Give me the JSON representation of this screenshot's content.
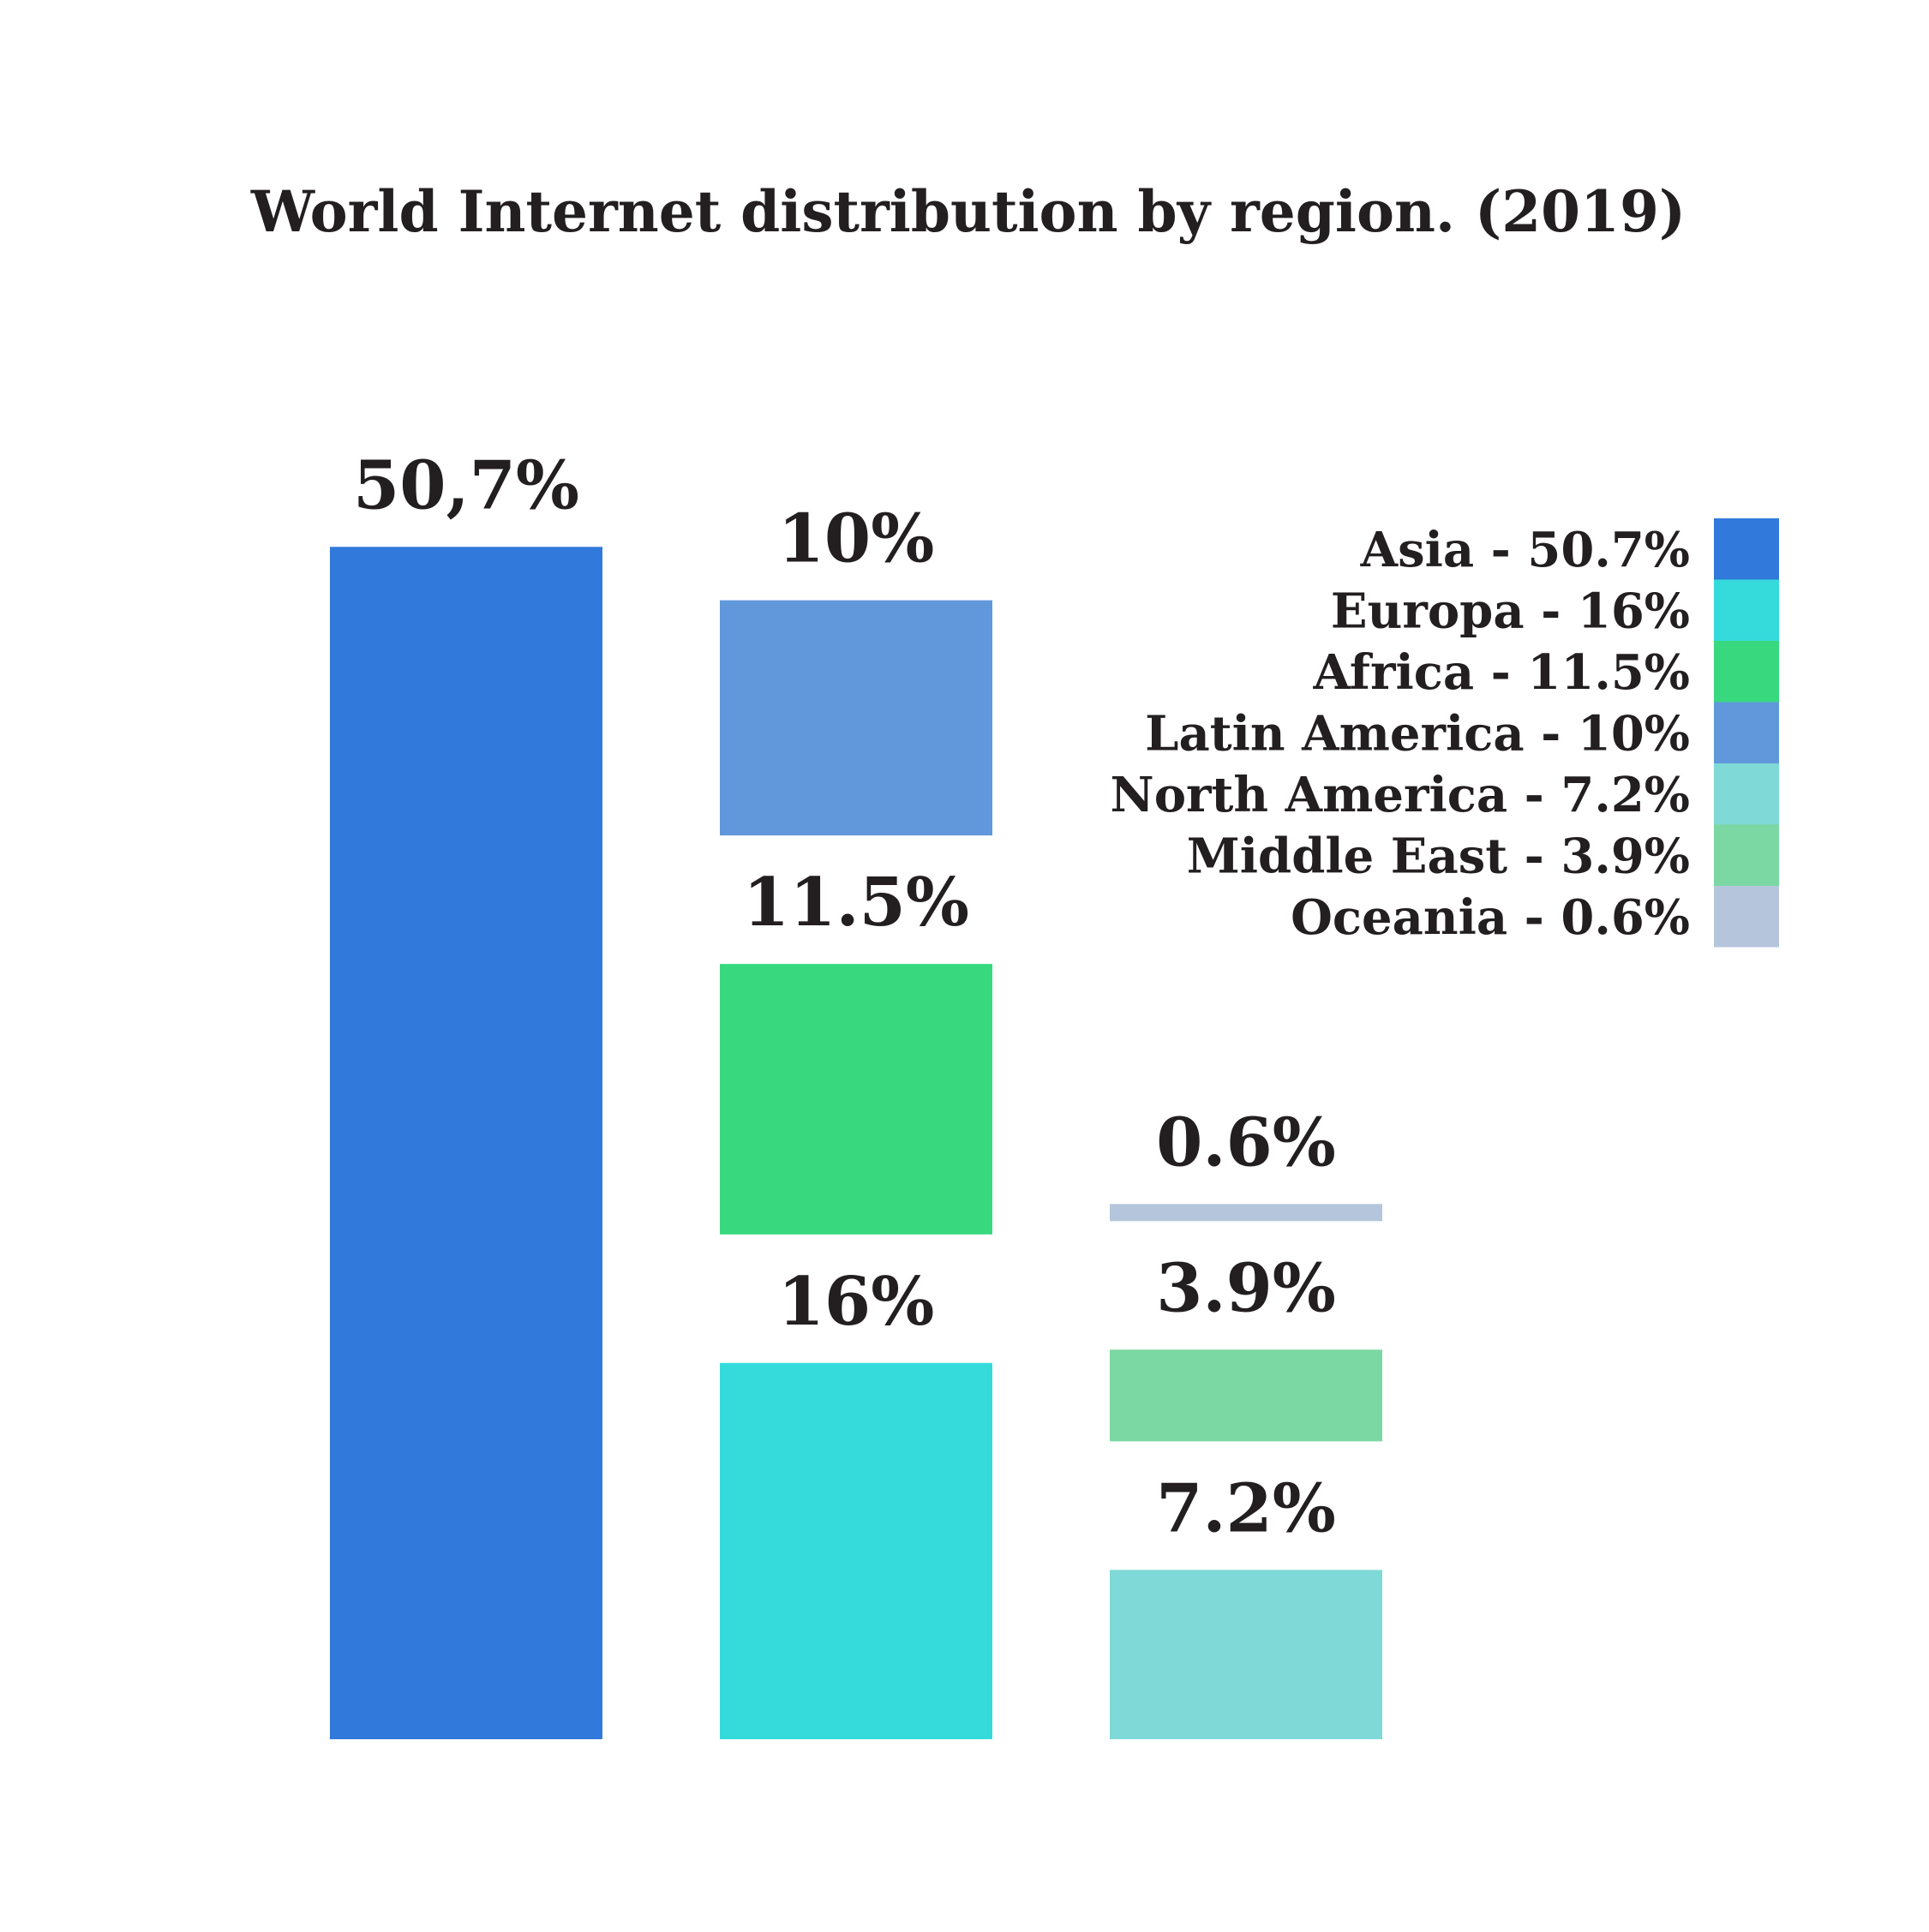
{
  "chart_data": {
    "type": "bar",
    "title": "World Internet distribution by region. (2019)",
    "layout": "stacked columns of segments, largest column first",
    "legend_position": "top-right",
    "series": [
      {
        "name": "Asia",
        "value": 50.7,
        "data_label": "50,7%",
        "legend_label": "Asia - 50.7%",
        "color": "#3179db",
        "column": 1
      },
      {
        "name": "Europa",
        "value": 16,
        "data_label": "16%",
        "legend_label": "Europa - 16%",
        "color": "#35dbdb",
        "column": 2
      },
      {
        "name": "Africa",
        "value": 11.5,
        "data_label": "11.5%",
        "legend_label": "Africa - 11.5%",
        "color": "#38d97e",
        "column": 2
      },
      {
        "name": "Latin America",
        "value": 10,
        "data_label": "10%",
        "legend_label": "Latin America - 10%",
        "color": "#6098db",
        "column": 2
      },
      {
        "name": "North America",
        "value": 7.2,
        "data_label": "7.2%",
        "legend_label": "North America - 7.2%",
        "color": "#7fd9d6",
        "column": 3
      },
      {
        "name": "Middle East",
        "value": 3.9,
        "data_label": "3.9%",
        "legend_label": "Middle East - 3.9%",
        "color": "#7bd8a2",
        "column": 3
      },
      {
        "name": "Oceania",
        "value": 0.6,
        "data_label": "0.6%",
        "legend_label": "Oceania - 0.6%",
        "color": "#b5c6dc",
        "column": 3
      }
    ]
  }
}
